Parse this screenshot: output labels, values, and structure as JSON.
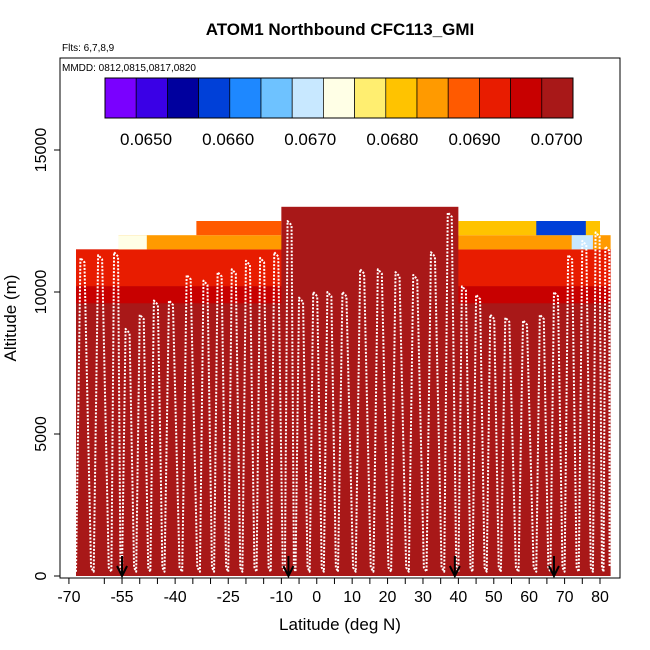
{
  "chart_data": {
    "type": "heatmap",
    "title": "ATOM1 Northbound CFC113_GMI",
    "subtitle_flights": "Flts: 6,7,8,9",
    "subtitle_dates": "MMDD: 0812,0815,0817,0820",
    "xlabel": "Latitude (deg N)",
    "ylabel": "Altitude (m)",
    "xlim": [
      -70,
      83
    ],
    "ylim": [
      0,
      17500
    ],
    "x_ticks": [
      -70,
      -55,
      -40,
      -25,
      -10,
      0,
      10,
      20,
      30,
      40,
      50,
      60,
      70,
      80
    ],
    "x_tick_labels": [
      "-70",
      "-55",
      "-40",
      "-25",
      "-10",
      "0",
      "10",
      "20",
      "30",
      "40",
      "50",
      "60",
      "70",
      "80"
    ],
    "minor_x_ticks": [
      -60,
      -50,
      -45,
      -35,
      -30,
      -20,
      -15,
      -5,
      5,
      15,
      25,
      35,
      45,
      55,
      65,
      75
    ],
    "y_ticks": [
      0,
      5000,
      10000,
      15000
    ],
    "y_tick_labels": [
      "0",
      "5000",
      "10000",
      "15000"
    ],
    "colorbar": {
      "min": 0.0645,
      "max": 0.0702,
      "tick_values": [
        0.065,
        0.066,
        0.067,
        0.068,
        0.069,
        0.07
      ],
      "tick_labels": [
        "0.0650",
        "0.0660",
        "0.0670",
        "0.0680",
        "0.0690",
        "0.0700"
      ],
      "colors": [
        "#7a00ff",
        "#3a00e6",
        "#00009e",
        "#0040d8",
        "#1e88ff",
        "#6ec2ff",
        "#c8e8ff",
        "#ffffe6",
        "#ffee70",
        "#ffc300",
        "#ff9a00",
        "#ff5a00",
        "#e81c00",
        "#c80000",
        "#a81818"
      ]
    },
    "background_value": 0.0702,
    "upper_layers": [
      {
        "xmin": -68,
        "xmax": 83,
        "ymin": 10200,
        "ymax": 11500,
        "value": 0.0692
      },
      {
        "xmin": -68,
        "xmax": 83,
        "ymin": 9600,
        "ymax": 10200,
        "value": 0.0697
      },
      {
        "xmin": -68,
        "xmax": 83,
        "ymin": 9000,
        "ymax": 9600,
        "value": 0.07
      },
      {
        "xmin": -56,
        "xmax": 83,
        "ymin": 11500,
        "ymax": 12000,
        "value": 0.0685
      },
      {
        "xmin": -34,
        "xmax": -10,
        "ymin": 12000,
        "ymax": 12500,
        "value": 0.069
      },
      {
        "xmin": 40,
        "xmax": 80,
        "ymin": 12000,
        "ymax": 12500,
        "value": 0.068
      }
    ],
    "low_value_patches": [
      {
        "xmin": -56,
        "xmax": -48,
        "ymin": 11500,
        "ymax": 12000,
        "value": 0.0674
      },
      {
        "xmin": 62,
        "xmax": 76,
        "ymin": 12000,
        "ymax": 12500,
        "value": 0.066
      },
      {
        "xmin": 72,
        "xmax": 78,
        "ymin": 11500,
        "ymax": 12000,
        "value": 0.0668
      }
    ],
    "tall_block": {
      "xmin": -10,
      "xmax": 40,
      "ymin": 0,
      "ymax": 13000,
      "value": 0.0702
    },
    "flight_track_latitudes": [
      -68,
      -63,
      -58,
      -55,
      -51,
      -47,
      -43,
      -38,
      -33,
      -29,
      -25,
      -21,
      -17,
      -13,
      -9,
      -6,
      -2,
      2,
      6,
      11,
      16,
      21,
      26,
      31,
      36,
      40,
      44,
      48,
      52,
      57,
      62,
      66,
      70,
      74,
      78,
      81
    ],
    "flight_track_peaks": [
      11200,
      11300,
      11400,
      8700,
      9200,
      9700,
      9700,
      10600,
      10400,
      10700,
      10800,
      11100,
      11200,
      11400,
      12500,
      9800,
      10000,
      10000,
      10000,
      10800,
      10800,
      10700,
      10600,
      11400,
      12800,
      10200,
      9900,
      9200,
      9100,
      9000,
      9200,
      10000,
      11300,
      11800,
      12100,
      11600
    ],
    "arrow_markers_latitude": [
      -55,
      -8,
      39,
      67
    ]
  }
}
